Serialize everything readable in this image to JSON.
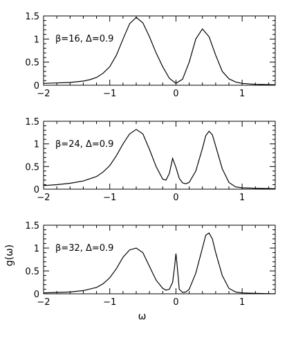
{
  "chart_data": [
    {
      "type": "line",
      "annotation": "β=16,  Δ=0.9",
      "xlim": [
        -2,
        1.5
      ],
      "ylim": [
        0,
        1.5
      ],
      "xticks": [
        "−2",
        "−1",
        "0",
        "1"
      ],
      "yticks": [
        "0",
        "0.5",
        "1",
        "1.5"
      ],
      "grid": false,
      "series": [
        {
          "x": [
            -2.0,
            -1.8,
            -1.6,
            -1.4,
            -1.3,
            -1.2,
            -1.1,
            -1.0,
            -0.9,
            -0.8,
            -0.7,
            -0.6,
            -0.5,
            -0.4,
            -0.3,
            -0.2,
            -0.1,
            0.0,
            0.1,
            0.2,
            0.3,
            0.4,
            0.5,
            0.6,
            0.7,
            0.8,
            0.9,
            1.0,
            1.2,
            1.5
          ],
          "y": [
            0.04,
            0.05,
            0.06,
            0.09,
            0.12,
            0.17,
            0.26,
            0.4,
            0.65,
            1.0,
            1.33,
            1.47,
            1.35,
            1.05,
            0.7,
            0.4,
            0.15,
            0.04,
            0.13,
            0.5,
            1.0,
            1.22,
            1.05,
            0.65,
            0.3,
            0.14,
            0.07,
            0.04,
            0.02,
            0.01
          ]
        }
      ]
    },
    {
      "type": "line",
      "annotation": "β=24,  Δ=0.9",
      "xlim": [
        -2,
        1.5
      ],
      "ylim": [
        0,
        1.5
      ],
      "xticks": [
        "−2",
        "−1",
        "0",
        "1"
      ],
      "yticks": [
        "0",
        "0.5",
        "1",
        "1.5"
      ],
      "grid": false,
      "series": [
        {
          "x": [
            -2.0,
            -1.8,
            -1.6,
            -1.4,
            -1.2,
            -1.1,
            -1.0,
            -0.9,
            -0.8,
            -0.7,
            -0.6,
            -0.5,
            -0.4,
            -0.3,
            -0.2,
            -0.15,
            -0.1,
            -0.05,
            0.0,
            0.05,
            0.1,
            0.15,
            0.2,
            0.3,
            0.4,
            0.45,
            0.5,
            0.55,
            0.6,
            0.7,
            0.8,
            0.9,
            1.0,
            1.2,
            1.5
          ],
          "y": [
            0.08,
            0.1,
            0.13,
            0.18,
            0.28,
            0.38,
            0.52,
            0.74,
            1.0,
            1.22,
            1.32,
            1.22,
            0.88,
            0.5,
            0.22,
            0.2,
            0.35,
            0.68,
            0.48,
            0.24,
            0.14,
            0.12,
            0.15,
            0.4,
            0.9,
            1.18,
            1.28,
            1.2,
            0.95,
            0.45,
            0.15,
            0.05,
            0.03,
            0.02,
            0.01
          ]
        }
      ]
    },
    {
      "type": "line",
      "annotation": "β=32,  Δ=0.9",
      "xlim": [
        -2,
        1.5
      ],
      "ylim": [
        0,
        1.5
      ],
      "xticks": [
        "−2",
        "−1",
        "0",
        "1"
      ],
      "yticks": [
        "0",
        "0.5",
        "1",
        "1.5"
      ],
      "xlabel": "ω",
      "ylabel": "g(ω)",
      "grid": false,
      "series": [
        {
          "x": [
            -2.0,
            -1.8,
            -1.6,
            -1.4,
            -1.2,
            -1.1,
            -1.0,
            -0.9,
            -0.8,
            -0.7,
            -0.6,
            -0.5,
            -0.4,
            -0.3,
            -0.2,
            -0.15,
            -0.1,
            -0.05,
            -0.02,
            0.0,
            0.02,
            0.05,
            0.1,
            0.15,
            0.2,
            0.3,
            0.4,
            0.45,
            0.5,
            0.55,
            0.6,
            0.7,
            0.8,
            0.9,
            1.0,
            1.2,
            1.5
          ],
          "y": [
            0.02,
            0.03,
            0.04,
            0.07,
            0.14,
            0.22,
            0.35,
            0.55,
            0.8,
            0.96,
            1.0,
            0.9,
            0.6,
            0.3,
            0.12,
            0.08,
            0.1,
            0.25,
            0.6,
            0.88,
            0.6,
            0.1,
            0.03,
            0.04,
            0.1,
            0.45,
            1.0,
            1.28,
            1.33,
            1.2,
            0.9,
            0.4,
            0.12,
            0.04,
            0.02,
            0.01,
            0.0
          ]
        }
      ]
    }
  ]
}
